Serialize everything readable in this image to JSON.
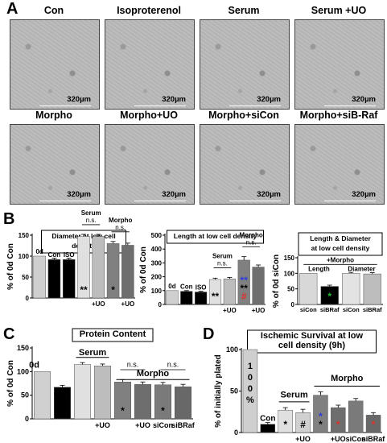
{
  "panels": {
    "A": {
      "letter": "A",
      "images": [
        {
          "title": "Con",
          "scale": "320µm"
        },
        {
          "title": "Isoproterenol",
          "scale": "320µm"
        },
        {
          "title": "Serum",
          "scale": "320µm"
        },
        {
          "title": "Serum +UO",
          "scale": "320µm"
        },
        {
          "title": "Morpho",
          "scale": "320µm"
        },
        {
          "title": "Morpho+UO",
          "scale": "320µm"
        },
        {
          "title": "Morpho+siCon",
          "scale": "320µm"
        },
        {
          "title": "Morpho+siB-Raf",
          "scale": "320µm"
        }
      ]
    },
    "B": {
      "letter": "B"
    },
    "C": {
      "letter": "C"
    },
    "D": {
      "letter": "D"
    }
  },
  "chart_data": [
    {
      "id": "B1",
      "type": "bar",
      "title_lines": [
        "Diameter at low cell",
        "density"
      ],
      "ylabel": "% of 0d Con",
      "ylim": [
        0,
        150
      ],
      "yticks": [
        0,
        50,
        100,
        150
      ],
      "categories": [
        "0d",
        "Con",
        "ISO",
        "Serum",
        "Serum+UO",
        "Morpho",
        "Morpho+UO"
      ],
      "values": [
        100,
        92,
        92,
        147,
        147,
        130,
        126
      ],
      "errors": [
        0,
        3,
        3,
        5,
        5,
        5,
        5
      ],
      "fills": [
        "#cfcfcf",
        "#000000",
        "#000000",
        "#e0e0e0",
        "#bdbdbd",
        "#808080",
        "#6e6e6e"
      ],
      "labels": {
        "cat": [
          "0d",
          "Con",
          "ISO"
        ],
        "uo": [
          "+UO",
          "+UO"
        ],
        "group": [
          "Serum",
          "Morpho"
        ],
        "ns": [
          "n.s.",
          "n.s."
        ]
      },
      "marks": [
        {
          "bar": 3,
          "text": "**",
          "color": "#000000"
        },
        {
          "bar": 5,
          "text": "*",
          "color": "#000000"
        }
      ]
    },
    {
      "id": "B2",
      "type": "bar",
      "title_lines": [
        "Length at low cell density"
      ],
      "ylabel": "% of 0d Con",
      "ylim": [
        0,
        500
      ],
      "yticks": [
        0,
        100,
        200,
        300,
        400,
        500
      ],
      "categories": [
        "0d",
        "Con",
        "ISO",
        "Serum",
        "Serum+UO",
        "Morpho",
        "Morpho+UO"
      ],
      "values": [
        100,
        95,
        90,
        180,
        185,
        320,
        270
      ],
      "errors": [
        0,
        5,
        5,
        10,
        10,
        25,
        15
      ],
      "fills": [
        "#cfcfcf",
        "#000000",
        "#000000",
        "#e0e0e0",
        "#bdbdbd",
        "#808080",
        "#6e6e6e"
      ],
      "labels": {
        "cat": [
          "0d",
          "Con",
          "ISO"
        ],
        "uo": [
          "+UO",
          "+UO"
        ],
        "group": [
          "Serum",
          "Morpho"
        ],
        "ns": [
          "n.s.",
          "n.s."
        ]
      },
      "marks": [
        {
          "bar": 3,
          "text": "**",
          "color": "#000000"
        },
        {
          "bar": 5,
          "text": "#",
          "color": "#e0302a"
        },
        {
          "bar": 5,
          "text": "**",
          "color": "#000000"
        },
        {
          "bar": 5,
          "text": "**",
          "color": "#2a3ae0"
        }
      ]
    },
    {
      "id": "B3",
      "type": "bar",
      "title_lines": [
        "Length & Diameter",
        "at low cell density"
      ],
      "ylabel": "% of 0d siCon",
      "ylim": [
        0,
        150
      ],
      "yticks": [
        0,
        50,
        100,
        150
      ],
      "categories": [
        "siCon",
        "siBRaf",
        "siCon",
        "siBRaf"
      ],
      "values": [
        100,
        58,
        100,
        98
      ],
      "errors": [
        0,
        4,
        3,
        4
      ],
      "fills": [
        "#d8d8d8",
        "#000000",
        "#e3e3e3",
        "#bdbdbd"
      ],
      "labels": {
        "group": [
          "+Morpho"
        ],
        "sub": [
          "Length",
          "Diameter"
        ],
        "cat": [
          "siCon",
          "siBRaf",
          "siCon",
          "siBRaf"
        ]
      },
      "marks": [
        {
          "bar": 1,
          "text": "*",
          "color": "#22c036"
        }
      ]
    },
    {
      "id": "C",
      "type": "bar",
      "title_lines": [
        "Protein Content"
      ],
      "ylabel": "% of 0d Con",
      "ylim": [
        0,
        150
      ],
      "yticks": [
        0,
        50,
        100,
        150
      ],
      "categories": [
        "0d",
        "Con",
        "Serum",
        "Serum+UO",
        "Morpho",
        "Morpho+UO",
        "siCon",
        "siBRaf"
      ],
      "values": [
        100,
        67,
        115,
        112,
        78,
        73,
        72,
        68
      ],
      "errors": [
        0,
        4,
        4,
        4,
        5,
        5,
        5,
        5
      ],
      "fills": [
        "#d0d0d0",
        "#000000",
        "#e0e0e0",
        "#bdbdbd",
        "#808080",
        "#6e6e6e",
        "#7a7a7a",
        "#686868"
      ],
      "labels": {
        "cat": [
          "0d",
          "Con"
        ],
        "uo": [
          "+UO",
          "+UO",
          "siCon",
          "siBRaf"
        ],
        "group": [
          "Serum",
          "Morpho"
        ],
        "ns": [
          "n.s.",
          "n.s."
        ]
      },
      "marks": [
        {
          "bar": 1,
          "text": "**",
          "color": "#000000"
        },
        {
          "bar": 4,
          "text": "*",
          "color": "#000000"
        },
        {
          "bar": 6,
          "text": "*",
          "color": "#000000"
        }
      ]
    },
    {
      "id": "D",
      "type": "bar",
      "title_lines": [
        "Ischemic Survival at low",
        "cell density (9h)"
      ],
      "ylabel": "% of initially plated",
      "ylim": [
        0,
        100
      ],
      "yticks": [
        0,
        50,
        100
      ],
      "categories": [
        "0d",
        "Con",
        "Serum",
        "Serum+UO",
        "Morpho",
        "Morpho+UO",
        "siCon",
        "siBRaf"
      ],
      "values": [
        100,
        10,
        27,
        24,
        45,
        30,
        38,
        21
      ],
      "errors": [
        0,
        2,
        3,
        4,
        4,
        3,
        3,
        3
      ],
      "fills": [
        "#cfcfcf",
        "#000000",
        "#e0e0e0",
        "#d0d0d0",
        "#808080",
        "#6e6e6e",
        "#7a7a7a",
        "#686868"
      ],
      "labels": {
        "inbar": "100%",
        "cat": [
          "Con"
        ],
        "uo": [
          "+UO",
          "+UO",
          "siCon",
          "siBRaf"
        ],
        "group": [
          "Serum",
          "Morpho"
        ]
      },
      "marks": [
        {
          "bar": 2,
          "text": "*",
          "color": "#000000"
        },
        {
          "bar": 3,
          "text": "#",
          "color": "#000000"
        },
        {
          "bar": 4,
          "text": "*",
          "color": "#000000"
        },
        {
          "bar": 4,
          "text": "*",
          "color": "#2a3ae0"
        },
        {
          "bar": 5,
          "text": "*",
          "color": "#e0302a"
        },
        {
          "bar": 7,
          "text": "*",
          "color": "#e0302a"
        }
      ]
    }
  ]
}
